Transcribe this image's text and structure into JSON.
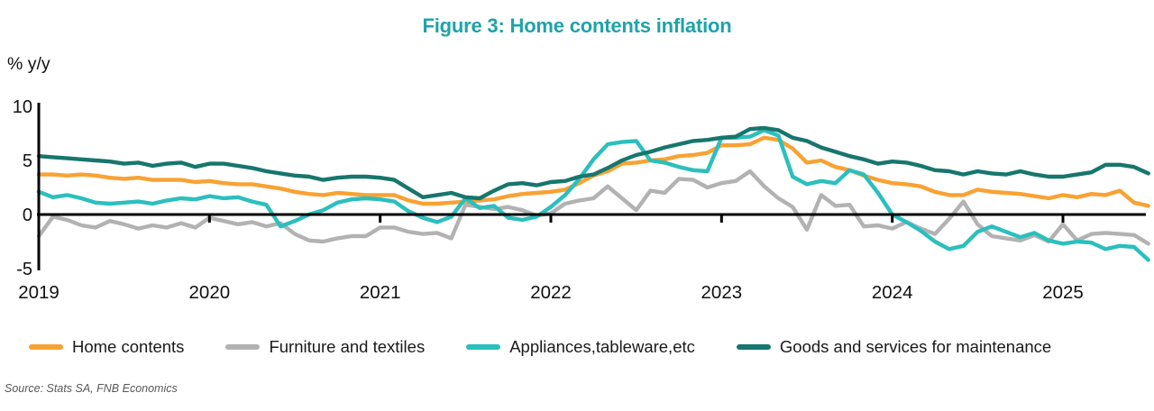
{
  "title": "Figure 3: Home contents inflation",
  "y_axis_unit_label": "% y/y",
  "source": "Source: Stats SA, FNB Economics",
  "chart_data": {
    "type": "line",
    "title": "Figure 3: Home contents inflation",
    "ylabel": "% y/y",
    "ylim": [
      -5,
      10
    ],
    "yticks": [
      10,
      5,
      0,
      -5
    ],
    "xticks": [
      "2019",
      "2020",
      "2021",
      "2022",
      "2023",
      "2024",
      "2025"
    ],
    "x_start": "2019-01",
    "x_end": "2025-07",
    "x_frequency": "monthly",
    "grid": false,
    "legend_position": "bottom",
    "axis_color": "#000000",
    "series": [
      {
        "name": "Home contents",
        "color": "#F8A233",
        "values": [
          3.7,
          3.7,
          3.6,
          3.7,
          3.6,
          3.4,
          3.3,
          3.4,
          3.2,
          3.2,
          3.2,
          3.0,
          3.1,
          2.9,
          2.8,
          2.8,
          2.6,
          2.4,
          2.1,
          1.9,
          1.8,
          2.0,
          1.9,
          1.8,
          1.8,
          1.8,
          1.3,
          1.0,
          1.0,
          1.1,
          1.2,
          1.3,
          1.4,
          1.7,
          1.9,
          2.0,
          2.1,
          2.3,
          2.9,
          3.6,
          4.0,
          4.7,
          4.8,
          5.0,
          5.1,
          5.4,
          5.5,
          5.7,
          6.4,
          6.4,
          6.5,
          7.1,
          6.9,
          6.1,
          4.8,
          5.0,
          4.4,
          4.1,
          3.6,
          3.2,
          2.9,
          2.8,
          2.6,
          2.1,
          1.8,
          1.8,
          2.3,
          2.1,
          2.0,
          1.9,
          1.7,
          1.5,
          1.8,
          1.6,
          1.9,
          1.8,
          2.2,
          1.1,
          0.8
        ]
      },
      {
        "name": "Furniture and textiles",
        "color": "#B2B2B2",
        "values": [
          -2.0,
          -0.2,
          -0.5,
          -1.0,
          -1.2,
          -0.6,
          -0.9,
          -1.3,
          -1.0,
          -1.2,
          -0.8,
          -1.2,
          -0.3,
          -0.6,
          -0.9,
          -0.7,
          -1.1,
          -0.8,
          -1.8,
          -2.4,
          -2.5,
          -2.2,
          -2.0,
          -2.0,
          -1.2,
          -1.2,
          -1.6,
          -1.8,
          -1.7,
          -2.2,
          0.9,
          0.7,
          0.5,
          0.7,
          0.4,
          -0.1,
          0.1,
          1.0,
          1.3,
          1.5,
          2.6,
          1.5,
          0.4,
          2.2,
          2.0,
          3.3,
          3.2,
          2.5,
          2.9,
          3.1,
          4.0,
          2.6,
          1.5,
          0.7,
          -1.4,
          1.8,
          0.8,
          0.9,
          -1.1,
          -1.0,
          -1.3,
          -0.7,
          -1.3,
          -1.8,
          -0.4,
          1.2,
          -0.9,
          -2.0,
          -2.2,
          -2.4,
          -1.9,
          -2.5,
          -0.9,
          -2.4,
          -1.8,
          -1.7,
          -1.8,
          -1.9,
          -2.7
        ]
      },
      {
        "name": "Appliances,tableware,etc",
        "color": "#2BBFBE",
        "values": [
          2.1,
          1.6,
          1.8,
          1.5,
          1.1,
          1.0,
          1.1,
          1.2,
          1.0,
          1.3,
          1.5,
          1.4,
          1.7,
          1.5,
          1.6,
          1.2,
          0.9,
          -1.1,
          -0.6,
          0.0,
          0.4,
          1.1,
          1.4,
          1.5,
          1.4,
          1.2,
          0.3,
          -0.3,
          -0.7,
          -0.2,
          1.5,
          0.6,
          0.8,
          -0.3,
          -0.5,
          -0.2,
          0.7,
          1.8,
          3.3,
          5.1,
          6.5,
          6.7,
          6.8,
          5.0,
          4.8,
          4.4,
          4.1,
          4.0,
          7.1,
          7.1,
          7.2,
          7.8,
          7.3,
          3.5,
          2.8,
          3.1,
          2.9,
          4.1,
          3.7,
          2.0,
          0.0,
          -0.7,
          -1.5,
          -2.5,
          -3.2,
          -2.9,
          -1.6,
          -1.1,
          -1.6,
          -2.1,
          -1.7,
          -2.4,
          -2.7,
          -2.5,
          -2.6,
          -3.2,
          -2.9,
          -3.0,
          -4.2
        ]
      },
      {
        "name": "Goods and services for maintenance",
        "color": "#17766D",
        "values": [
          5.4,
          5.3,
          5.2,
          5.1,
          5.0,
          4.9,
          4.7,
          4.8,
          4.5,
          4.7,
          4.8,
          4.4,
          4.7,
          4.7,
          4.5,
          4.3,
          4.0,
          3.8,
          3.6,
          3.5,
          3.2,
          3.4,
          3.5,
          3.5,
          3.4,
          3.2,
          2.4,
          1.6,
          1.8,
          2.0,
          1.6,
          1.5,
          2.2,
          2.8,
          2.9,
          2.7,
          3.0,
          3.1,
          3.5,
          3.7,
          4.3,
          5.0,
          5.5,
          5.8,
          6.2,
          6.5,
          6.8,
          6.9,
          7.1,
          7.2,
          7.9,
          8.0,
          7.8,
          7.1,
          6.8,
          6.2,
          5.8,
          5.4,
          5.1,
          4.7,
          4.9,
          4.8,
          4.5,
          4.1,
          4.0,
          3.7,
          4.0,
          3.8,
          3.7,
          4.0,
          3.7,
          3.5,
          3.5,
          3.7,
          3.9,
          4.6,
          4.6,
          4.4,
          3.8
        ]
      }
    ]
  }
}
